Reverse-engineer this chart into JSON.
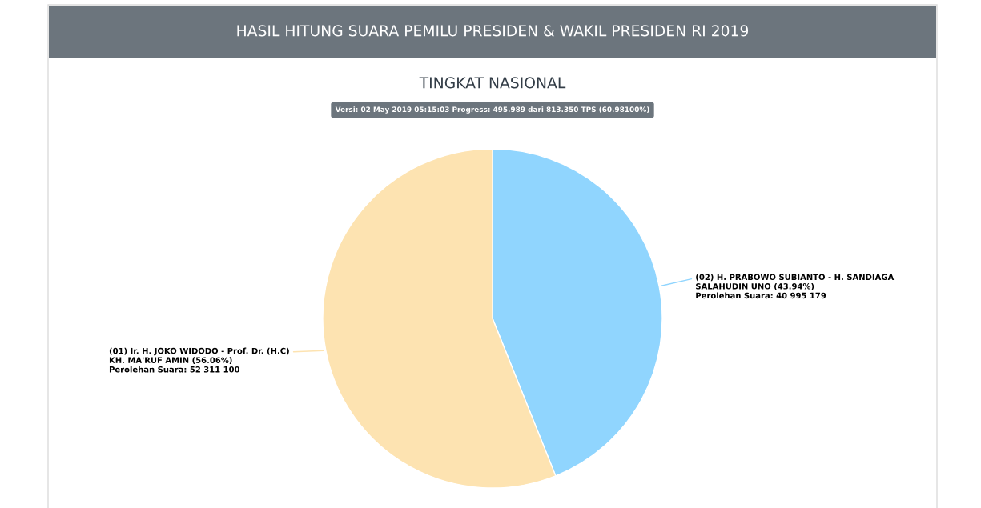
{
  "chart_data": {
    "type": "pie",
    "title": "HASIL HITUNG SUARA PEMILU PRESIDEN & WAKIL PRESIDEN RI 2019",
    "subtitle": "TINGKAT NASIONAL",
    "annotations": [
      "Versi: 02 May 2019 05:15:03 Progress: 495.989 dari 813.350 TPS (60.98100%)"
    ],
    "categories": [
      "(02) H. PRABOWO SUBIANTO - H. SANDIAGA\nSALAHUDIN UNO",
      "(01) Ir. H. JOKO WIDODO - Prof. Dr. (H.C)\nKH. MA'RUF AMIN"
    ],
    "values": [
      40995179,
      52311100
    ],
    "colors": [
      "#90d5fe",
      "#fde3b1"
    ],
    "value_labels": [
      "(43.94%)\nPerolehan Suara: 40 995 179",
      "(56.06%)\nPerolehan Suara: 52 311 100"
    ]
  }
}
